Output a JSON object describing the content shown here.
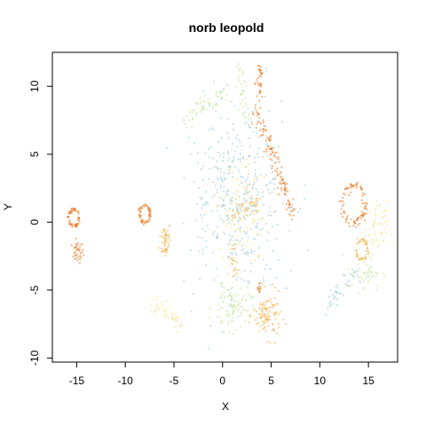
{
  "chart_data": {
    "type": "scatter",
    "title": "norb leopold",
    "xlabel": "X",
    "ylabel": "Y",
    "xlim": [
      -17.5,
      18
    ],
    "ylim": [
      -10.3,
      12.5
    ],
    "xticks": [
      -15,
      -10,
      -5,
      0,
      5,
      10,
      15
    ],
    "yticks": [
      -10,
      -5,
      0,
      5,
      10
    ],
    "xtick_labels": [
      "-15",
      "-10",
      "-5",
      "0",
      "5",
      "10",
      "15"
    ],
    "ytick_labels": [
      "-10",
      "-5",
      "0",
      "5",
      "10"
    ],
    "grid": false,
    "legend": "none",
    "colors": {
      "high": "#e8761e",
      "mid_high": "#f2b04a",
      "mid": "#f6e08a",
      "mid_low": "#c8e3a0",
      "low": "#9ccbd8"
    },
    "clusters": [
      {
        "shape": "ring",
        "center": [
          -15.3,
          0.3
        ],
        "radius": 0.55,
        "count": 60,
        "color": "high"
      },
      {
        "shape": "blob",
        "center": [
          -14.9,
          -2.2
        ],
        "spread": [
          0.3,
          0.4
        ],
        "count": 35,
        "color": "high"
      },
      {
        "shape": "ring",
        "center": [
          -8.0,
          0.6
        ],
        "radius": 0.55,
        "count": 60,
        "color": "high"
      },
      {
        "shape": "blob",
        "center": [
          -5.9,
          -1.3
        ],
        "spread": [
          0.3,
          0.7
        ],
        "count": 50,
        "color": "mid_high"
      },
      {
        "shape": "line",
        "from": [
          -7.0,
          -6.0
        ],
        "to": [
          -4.2,
          -7.6
        ],
        "width": 0.25,
        "count": 45,
        "color": "mid"
      },
      {
        "shape": "line",
        "from": [
          -4.0,
          7.4
        ],
        "to": [
          0.3,
          9.6
        ],
        "width": 0.3,
        "count": 60,
        "color": "mid_low"
      },
      {
        "shape": "blob",
        "center": [
          1.5,
          1.5
        ],
        "spread": [
          2.6,
          3.2
        ],
        "count": 420,
        "color": "low"
      },
      {
        "shape": "blob",
        "center": [
          2.0,
          0.8
        ],
        "spread": [
          1.5,
          1.8
        ],
        "count": 140,
        "color": "mid"
      },
      {
        "shape": "line",
        "from": [
          1.5,
          11.8
        ],
        "to": [
          2.5,
          7.5
        ],
        "width": 0.3,
        "count": 40,
        "color": "mid_low"
      },
      {
        "shape": "line",
        "from": [
          3.9,
          11.5
        ],
        "to": [
          3.6,
          8.0
        ],
        "width": 0.2,
        "count": 40,
        "color": "high"
      },
      {
        "shape": "line",
        "from": [
          3.6,
          8.0
        ],
        "to": [
          7.3,
          0.4
        ],
        "width": 0.25,
        "count": 120,
        "color": "high"
      },
      {
        "shape": "line",
        "from": [
          1.2,
          0.5
        ],
        "to": [
          3.8,
          1.5
        ],
        "width": 0.3,
        "count": 35,
        "color": "mid_high"
      },
      {
        "shape": "line",
        "from": [
          0.9,
          -1.5
        ],
        "to": [
          1.3,
          -4.0
        ],
        "width": 0.2,
        "count": 20,
        "color": "mid_high"
      },
      {
        "shape": "blob",
        "center": [
          4.6,
          -6.9
        ],
        "spread": [
          0.7,
          0.8
        ],
        "count": 110,
        "color": "mid_high"
      },
      {
        "shape": "blob",
        "center": [
          1.0,
          -6.2
        ],
        "spread": [
          1.0,
          0.9
        ],
        "count": 110,
        "color": "mid_low"
      },
      {
        "shape": "blob",
        "center": [
          3.8,
          -4.8
        ],
        "spread": [
          0.15,
          0.25
        ],
        "count": 10,
        "color": "high"
      },
      {
        "shape": "ring",
        "center": [
          13.5,
          1.3
        ],
        "radius": 1.2,
        "count": 90,
        "color": "high"
      },
      {
        "shape": "ring",
        "center": [
          14.3,
          -2.0
        ],
        "radius": 0.6,
        "count": 50,
        "color": "mid_high"
      },
      {
        "shape": "blob",
        "center": [
          15.8,
          -0.5
        ],
        "spread": [
          0.6,
          1.0
        ],
        "count": 60,
        "color": "mid"
      },
      {
        "shape": "blob",
        "center": [
          14.6,
          -3.7
        ],
        "spread": [
          0.9,
          0.7
        ],
        "count": 60,
        "color": "mid_low"
      },
      {
        "shape": "line",
        "from": [
          10.5,
          -6.2
        ],
        "to": [
          14.0,
          -3.5
        ],
        "width": 0.3,
        "count": 40,
        "color": "low"
      }
    ]
  }
}
